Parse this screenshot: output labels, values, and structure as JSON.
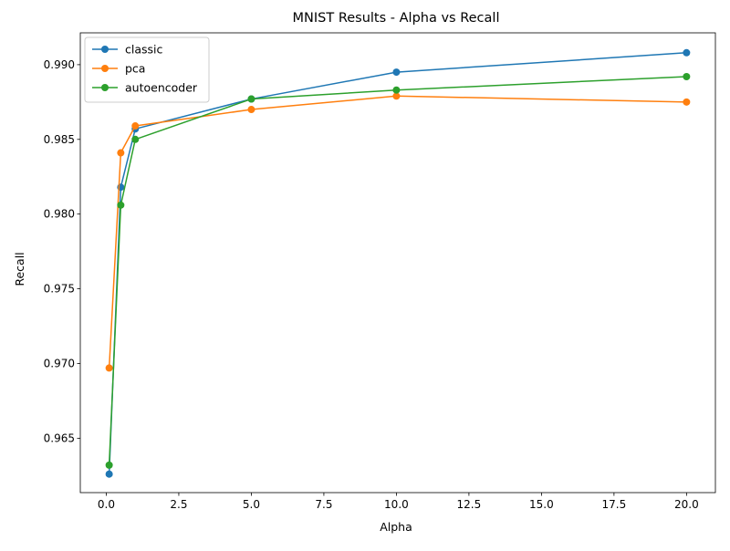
{
  "chart_data": {
    "type": "line",
    "title": "MNIST Results - Alpha vs Recall",
    "xlabel": "Alpha",
    "ylabel": "Recall",
    "xlim": [
      -0.895,
      20.995
    ],
    "ylim": [
      0.96136,
      0.99213
    ],
    "xticks": [
      0.0,
      2.5,
      5.0,
      7.5,
      10.0,
      12.5,
      15.0,
      17.5,
      20.0
    ],
    "xtick_labels": [
      "0.0",
      "2.5",
      "5.0",
      "7.5",
      "10.0",
      "12.5",
      "15.0",
      "17.5",
      "20.0"
    ],
    "yticks": [
      0.965,
      0.97,
      0.975,
      0.98,
      0.985,
      0.99
    ],
    "ytick_labels": [
      "0.965",
      "0.970",
      "0.975",
      "0.980",
      "0.985",
      "0.990"
    ],
    "grid": false,
    "legend_position": "top-left",
    "x": [
      0.1,
      0.5,
      1,
      5,
      10,
      20
    ],
    "series": [
      {
        "name": "classic",
        "color": "#1f77b4",
        "marker": "circle",
        "values": [
          0.9626,
          0.9818,
          0.9857,
          0.9877,
          0.9895,
          0.9908
        ]
      },
      {
        "name": "pca",
        "color": "#ff7f0e",
        "marker": "circle",
        "values": [
          0.9697,
          0.9841,
          0.9859,
          0.987,
          0.9879,
          0.9875
        ]
      },
      {
        "name": "autoencoder",
        "color": "#2ca02c",
        "marker": "circle",
        "values": [
          0.9632,
          0.9806,
          0.985,
          0.9877,
          0.9883,
          0.9892
        ]
      }
    ]
  }
}
